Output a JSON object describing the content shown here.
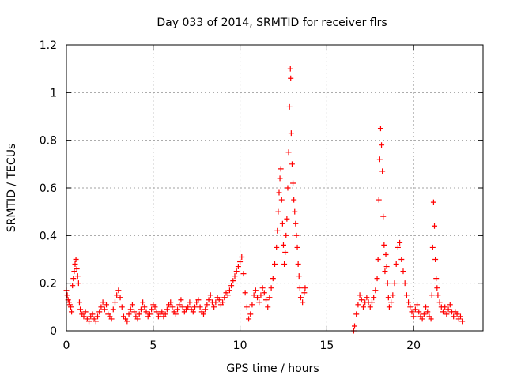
{
  "chart_data": {
    "type": "scatter",
    "title": "Day 033 of 2014, SRMTID for receiver flrs",
    "xlabel": "GPS time / hours",
    "ylabel": "SRMTID / TECUs",
    "xlim": [
      0,
      24
    ],
    "ylim": [
      0,
      1.2
    ],
    "x_ticks": [
      0,
      5,
      10,
      15,
      20
    ],
    "x_tick_labels": [
      "0",
      "5",
      "10",
      "15",
      "20"
    ],
    "y_ticks": [
      0,
      0.2,
      0.4,
      0.6,
      0.8,
      1.0,
      1.2
    ],
    "y_tick_labels": [
      "0",
      "0.2",
      "0.4",
      "0.6",
      "0.8",
      "1",
      "1.2"
    ],
    "grid": true,
    "marker": "+",
    "color": "#ff0000",
    "series": [
      {
        "name": "SRMTID",
        "points": [
          [
            0.0,
            0.17
          ],
          [
            0.05,
            0.15
          ],
          [
            0.1,
            0.13
          ],
          [
            0.15,
            0.12
          ],
          [
            0.2,
            0.11
          ],
          [
            0.25,
            0.1
          ],
          [
            0.3,
            0.08
          ],
          [
            0.35,
            0.19
          ],
          [
            0.4,
            0.22
          ],
          [
            0.45,
            0.25
          ],
          [
            0.5,
            0.28
          ],
          [
            0.55,
            0.3
          ],
          [
            0.6,
            0.26
          ],
          [
            0.65,
            0.23
          ],
          [
            0.7,
            0.2
          ],
          [
            0.75,
            0.12
          ],
          [
            0.8,
            0.09
          ],
          [
            0.9,
            0.07
          ],
          [
            1.0,
            0.06
          ],
          [
            1.1,
            0.08
          ],
          [
            1.2,
            0.05
          ],
          [
            1.3,
            0.04
          ],
          [
            1.4,
            0.06
          ],
          [
            1.5,
            0.07
          ],
          [
            1.6,
            0.05
          ],
          [
            1.7,
            0.04
          ],
          [
            1.8,
            0.06
          ],
          [
            1.9,
            0.08
          ],
          [
            2.0,
            0.1
          ],
          [
            2.1,
            0.12
          ],
          [
            2.2,
            0.09
          ],
          [
            2.3,
            0.11
          ],
          [
            2.4,
            0.07
          ],
          [
            2.5,
            0.06
          ],
          [
            2.6,
            0.05
          ],
          [
            2.7,
            0.09
          ],
          [
            2.8,
            0.12
          ],
          [
            2.9,
            0.15
          ],
          [
            3.0,
            0.17
          ],
          [
            3.1,
            0.14
          ],
          [
            3.2,
            0.1
          ],
          [
            3.3,
            0.06
          ],
          [
            3.4,
            0.05
          ],
          [
            3.5,
            0.04
          ],
          [
            3.6,
            0.07
          ],
          [
            3.7,
            0.09
          ],
          [
            3.8,
            0.11
          ],
          [
            3.9,
            0.08
          ],
          [
            4.0,
            0.06
          ],
          [
            4.1,
            0.05
          ],
          [
            4.2,
            0.07
          ],
          [
            4.3,
            0.09
          ],
          [
            4.4,
            0.12
          ],
          [
            4.5,
            0.1
          ],
          [
            4.6,
            0.08
          ],
          [
            4.7,
            0.06
          ],
          [
            4.8,
            0.07
          ],
          [
            4.9,
            0.09
          ],
          [
            5.0,
            0.11
          ],
          [
            5.1,
            0.1
          ],
          [
            5.2,
            0.08
          ],
          [
            5.3,
            0.06
          ],
          [
            5.4,
            0.07
          ],
          [
            5.5,
            0.08
          ],
          [
            5.6,
            0.06
          ],
          [
            5.7,
            0.07
          ],
          [
            5.8,
            0.09
          ],
          [
            5.9,
            0.11
          ],
          [
            6.0,
            0.12
          ],
          [
            6.1,
            0.1
          ],
          [
            6.2,
            0.08
          ],
          [
            6.3,
            0.07
          ],
          [
            6.4,
            0.09
          ],
          [
            6.5,
            0.11
          ],
          [
            6.6,
            0.13
          ],
          [
            6.7,
            0.1
          ],
          [
            6.8,
            0.08
          ],
          [
            6.9,
            0.09
          ],
          [
            7.0,
            0.1
          ],
          [
            7.1,
            0.12
          ],
          [
            7.2,
            0.09
          ],
          [
            7.3,
            0.08
          ],
          [
            7.4,
            0.1
          ],
          [
            7.5,
            0.12
          ],
          [
            7.6,
            0.13
          ],
          [
            7.7,
            0.1
          ],
          [
            7.8,
            0.08
          ],
          [
            7.9,
            0.07
          ],
          [
            8.0,
            0.09
          ],
          [
            8.1,
            0.11
          ],
          [
            8.2,
            0.13
          ],
          [
            8.3,
            0.15
          ],
          [
            8.4,
            0.12
          ],
          [
            8.5,
            0.1
          ],
          [
            8.6,
            0.12
          ],
          [
            8.7,
            0.14
          ],
          [
            8.8,
            0.13
          ],
          [
            8.9,
            0.11
          ],
          [
            9.0,
            0.12
          ],
          [
            9.1,
            0.14
          ],
          [
            9.2,
            0.16
          ],
          [
            9.3,
            0.15
          ],
          [
            9.4,
            0.17
          ],
          [
            9.5,
            0.19
          ],
          [
            9.6,
            0.21
          ],
          [
            9.7,
            0.23
          ],
          [
            9.8,
            0.25
          ],
          [
            9.9,
            0.27
          ],
          [
            10.0,
            0.29
          ],
          [
            10.1,
            0.31
          ],
          [
            10.2,
            0.24
          ],
          [
            10.3,
            0.16
          ],
          [
            10.4,
            0.1
          ],
          [
            10.5,
            0.05
          ],
          [
            10.6,
            0.07
          ],
          [
            10.7,
            0.11
          ],
          [
            10.8,
            0.15
          ],
          [
            10.9,
            0.17
          ],
          [
            11.0,
            0.14
          ],
          [
            11.1,
            0.12
          ],
          [
            11.2,
            0.15
          ],
          [
            11.3,
            0.18
          ],
          [
            11.4,
            0.16
          ],
          [
            11.5,
            0.13
          ],
          [
            11.6,
            0.1
          ],
          [
            11.7,
            0.14
          ],
          [
            11.8,
            0.18
          ],
          [
            11.9,
            0.22
          ],
          [
            12.0,
            0.28
          ],
          [
            12.1,
            0.35
          ],
          [
            12.15,
            0.42
          ],
          [
            12.2,
            0.5
          ],
          [
            12.25,
            0.58
          ],
          [
            12.3,
            0.64
          ],
          [
            12.35,
            0.68
          ],
          [
            12.4,
            0.55
          ],
          [
            12.45,
            0.45
          ],
          [
            12.5,
            0.36
          ],
          [
            12.55,
            0.28
          ],
          [
            12.6,
            0.33
          ],
          [
            12.65,
            0.4
          ],
          [
            12.7,
            0.47
          ],
          [
            12.75,
            0.6
          ],
          [
            12.8,
            0.75
          ],
          [
            12.85,
            0.94
          ],
          [
            12.9,
            1.1
          ],
          [
            12.92,
            1.06
          ],
          [
            12.95,
            0.83
          ],
          [
            13.0,
            0.7
          ],
          [
            13.05,
            0.62
          ],
          [
            13.1,
            0.55
          ],
          [
            13.15,
            0.5
          ],
          [
            13.2,
            0.45
          ],
          [
            13.25,
            0.4
          ],
          [
            13.3,
            0.35
          ],
          [
            13.35,
            0.28
          ],
          [
            13.4,
            0.23
          ],
          [
            13.45,
            0.18
          ],
          [
            13.5,
            0.14
          ],
          [
            13.6,
            0.12
          ],
          [
            13.7,
            0.16
          ],
          [
            13.75,
            0.18
          ],
          [
            16.55,
            0.0
          ],
          [
            16.6,
            0.02
          ],
          [
            16.7,
            0.07
          ],
          [
            16.8,
            0.11
          ],
          [
            16.9,
            0.15
          ],
          [
            17.0,
            0.13
          ],
          [
            17.1,
            0.1
          ],
          [
            17.2,
            0.12
          ],
          [
            17.3,
            0.14
          ],
          [
            17.4,
            0.12
          ],
          [
            17.5,
            0.1
          ],
          [
            17.6,
            0.12
          ],
          [
            17.7,
            0.14
          ],
          [
            17.8,
            0.17
          ],
          [
            17.9,
            0.22
          ],
          [
            17.95,
            0.3
          ],
          [
            18.0,
            0.55
          ],
          [
            18.05,
            0.72
          ],
          [
            18.1,
            0.85
          ],
          [
            18.15,
            0.78
          ],
          [
            18.2,
            0.67
          ],
          [
            18.25,
            0.48
          ],
          [
            18.3,
            0.36
          ],
          [
            18.35,
            0.25
          ],
          [
            18.4,
            0.32
          ],
          [
            18.45,
            0.27
          ],
          [
            18.5,
            0.2
          ],
          [
            18.55,
            0.14
          ],
          [
            18.6,
            0.1
          ],
          [
            18.7,
            0.12
          ],
          [
            18.8,
            0.15
          ],
          [
            18.9,
            0.2
          ],
          [
            19.0,
            0.28
          ],
          [
            19.1,
            0.35
          ],
          [
            19.2,
            0.37
          ],
          [
            19.3,
            0.3
          ],
          [
            19.4,
            0.25
          ],
          [
            19.5,
            0.2
          ],
          [
            19.6,
            0.15
          ],
          [
            19.7,
            0.12
          ],
          [
            19.8,
            0.1
          ],
          [
            19.9,
            0.08
          ],
          [
            20.0,
            0.06
          ],
          [
            20.1,
            0.09
          ],
          [
            20.2,
            0.11
          ],
          [
            20.3,
            0.08
          ],
          [
            20.4,
            0.06
          ],
          [
            20.5,
            0.05
          ],
          [
            20.6,
            0.07
          ],
          [
            20.7,
            0.1
          ],
          [
            20.8,
            0.08
          ],
          [
            20.9,
            0.06
          ],
          [
            21.0,
            0.05
          ],
          [
            21.05,
            0.15
          ],
          [
            21.1,
            0.35
          ],
          [
            21.15,
            0.54
          ],
          [
            21.2,
            0.44
          ],
          [
            21.25,
            0.3
          ],
          [
            21.3,
            0.22
          ],
          [
            21.35,
            0.18
          ],
          [
            21.4,
            0.15
          ],
          [
            21.5,
            0.12
          ],
          [
            21.6,
            0.1
          ],
          [
            21.7,
            0.08
          ],
          [
            21.8,
            0.1
          ],
          [
            21.9,
            0.07
          ],
          [
            22.0,
            0.09
          ],
          [
            22.1,
            0.11
          ],
          [
            22.2,
            0.08
          ],
          [
            22.3,
            0.06
          ],
          [
            22.4,
            0.08
          ],
          [
            22.5,
            0.07
          ],
          [
            22.6,
            0.05
          ],
          [
            22.7,
            0.06
          ],
          [
            22.8,
            0.04
          ]
        ]
      }
    ]
  }
}
